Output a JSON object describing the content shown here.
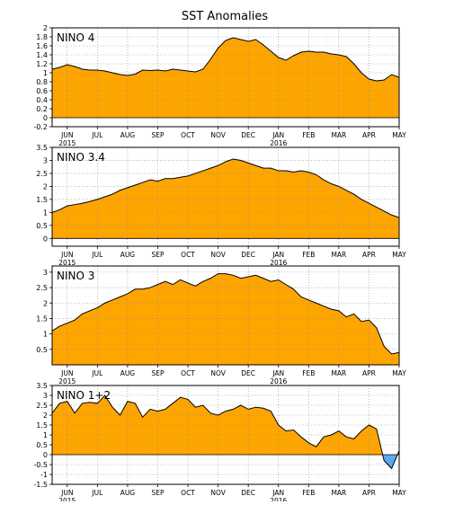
{
  "title": "SST Anomalies",
  "colors": {
    "positive": "#ffa500",
    "negative": "#5aaaf0",
    "line": "#000000",
    "grid": "#8c8c8c"
  },
  "x_axis": {
    "ticks": [
      {
        "label": "JUN",
        "t": 0.5
      },
      {
        "label": "JUL",
        "t": 1.5
      },
      {
        "label": "AUG",
        "t": 2.5
      },
      {
        "label": "SEP",
        "t": 3.5
      },
      {
        "label": "OCT",
        "t": 4.5
      },
      {
        "label": "NOV",
        "t": 5.5
      },
      {
        "label": "DEC",
        "t": 6.5
      },
      {
        "label": "JAN",
        "t": 7.5
      },
      {
        "label": "FEB",
        "t": 8.5
      },
      {
        "label": "MAR",
        "t": 9.5
      },
      {
        "label": "APR",
        "t": 10.5
      },
      {
        "label": "MAY",
        "t": 11.5
      }
    ],
    "year_labels": [
      {
        "label": "2015",
        "t": 0.5
      },
      {
        "label": "2016",
        "t": 7.5
      }
    ],
    "range": [
      0,
      11.5
    ]
  },
  "chart_data": [
    {
      "type": "area",
      "region_label": "NINO 4",
      "ylim": [
        -0.2,
        2.0
      ],
      "yticks": [
        "-0.2",
        "0",
        "0.2",
        "0.4",
        "0.6",
        "0.8",
        "1",
        "1.2",
        "1.4",
        "1.6",
        "1.8",
        "2"
      ],
      "x": [
        0.0,
        0.25,
        0.5,
        0.75,
        1.0,
        1.25,
        1.5,
        1.75,
        2.0,
        2.25,
        2.5,
        2.75,
        3.0,
        3.25,
        3.5,
        3.75,
        4.0,
        4.25,
        4.5,
        4.75,
        5.0,
        5.25,
        5.5,
        5.75,
        6.0,
        6.25,
        6.5,
        6.75,
        7.0,
        7.25,
        7.5,
        7.75,
        8.0,
        8.25,
        8.5,
        8.75,
        9.0,
        9.25,
        9.5,
        9.75,
        10.0,
        10.25,
        10.5,
        10.75,
        11.0,
        11.25,
        11.5
      ],
      "values": [
        1.08,
        1.12,
        1.18,
        1.14,
        1.08,
        1.06,
        1.06,
        1.04,
        1.0,
        0.96,
        0.94,
        0.97,
        1.06,
        1.05,
        1.06,
        1.04,
        1.08,
        1.06,
        1.04,
        1.02,
        1.08,
        1.3,
        1.55,
        1.72,
        1.78,
        1.74,
        1.7,
        1.74,
        1.62,
        1.48,
        1.34,
        1.28,
        1.38,
        1.46,
        1.48,
        1.46,
        1.46,
        1.42,
        1.4,
        1.36,
        1.2,
        1.0,
        0.86,
        0.82,
        0.84,
        0.96,
        0.9
      ]
    },
    {
      "type": "area",
      "region_label": "NINO 3.4",
      "ylim": [
        -0.3,
        3.5
      ],
      "yticks": [
        "0",
        "0.5",
        "1",
        "1.5",
        "2",
        "2.5",
        "3",
        "3.5"
      ],
      "x": [
        0.0,
        0.25,
        0.5,
        0.75,
        1.0,
        1.25,
        1.5,
        1.75,
        2.0,
        2.25,
        2.5,
        2.75,
        3.0,
        3.25,
        3.5,
        3.75,
        4.0,
        4.25,
        4.5,
        4.75,
        5.0,
        5.25,
        5.5,
        5.75,
        6.0,
        6.25,
        6.5,
        6.75,
        7.0,
        7.25,
        7.5,
        7.75,
        8.0,
        8.25,
        8.5,
        8.75,
        9.0,
        9.25,
        9.5,
        9.75,
        10.0,
        10.25,
        10.5,
        10.75,
        11.0,
        11.25,
        11.5
      ],
      "values": [
        1.0,
        1.1,
        1.25,
        1.3,
        1.35,
        1.42,
        1.5,
        1.6,
        1.7,
        1.85,
        1.95,
        2.05,
        2.15,
        2.25,
        2.2,
        2.3,
        2.3,
        2.35,
        2.4,
        2.5,
        2.6,
        2.7,
        2.8,
        2.95,
        3.05,
        3.0,
        2.9,
        2.8,
        2.7,
        2.7,
        2.6,
        2.6,
        2.55,
        2.6,
        2.55,
        2.45,
        2.25,
        2.1,
        2.0,
        1.85,
        1.7,
        1.5,
        1.35,
        1.2,
        1.05,
        0.9,
        0.8
      ]
    },
    {
      "type": "area",
      "region_label": "NINO 3",
      "ylim": [
        0.0,
        3.2
      ],
      "yticks": [
        "0.5",
        "1",
        "1.5",
        "2",
        "2.5",
        "3"
      ],
      "x": [
        0.0,
        0.25,
        0.5,
        0.75,
        1.0,
        1.25,
        1.5,
        1.75,
        2.0,
        2.25,
        2.5,
        2.75,
        3.0,
        3.25,
        3.5,
        3.75,
        4.0,
        4.25,
        4.5,
        4.75,
        5.0,
        5.25,
        5.5,
        5.75,
        6.0,
        6.25,
        6.5,
        6.75,
        7.0,
        7.25,
        7.5,
        7.75,
        8.0,
        8.25,
        8.5,
        8.75,
        9.0,
        9.25,
        9.5,
        9.75,
        10.0,
        10.25,
        10.5,
        10.75,
        11.0,
        11.25,
        11.5
      ],
      "values": [
        1.1,
        1.25,
        1.35,
        1.45,
        1.65,
        1.75,
        1.85,
        2.0,
        2.1,
        2.2,
        2.3,
        2.45,
        2.45,
        2.5,
        2.6,
        2.7,
        2.6,
        2.75,
        2.65,
        2.55,
        2.7,
        2.8,
        2.95,
        2.95,
        2.9,
        2.8,
        2.85,
        2.9,
        2.8,
        2.7,
        2.75,
        2.6,
        2.45,
        2.2,
        2.1,
        2.0,
        1.9,
        1.8,
        1.75,
        1.55,
        1.65,
        1.4,
        1.45,
        1.2,
        0.6,
        0.35,
        0.4
      ]
    },
    {
      "type": "area",
      "region_label": "NINO 1+2",
      "ylim": [
        -1.5,
        3.5
      ],
      "yticks": [
        "-1.5",
        "-1",
        "-0.5",
        "0",
        "0.5",
        "1",
        "1.5",
        "2",
        "2.5",
        "3",
        "3.5"
      ],
      "x": [
        0.0,
        0.25,
        0.5,
        0.75,
        1.0,
        1.25,
        1.5,
        1.75,
        2.0,
        2.25,
        2.5,
        2.75,
        3.0,
        3.25,
        3.5,
        3.75,
        4.0,
        4.25,
        4.5,
        4.75,
        5.0,
        5.25,
        5.5,
        5.75,
        6.0,
        6.25,
        6.5,
        6.75,
        7.0,
        7.25,
        7.5,
        7.75,
        8.0,
        8.25,
        8.5,
        8.75,
        9.0,
        9.25,
        9.5,
        9.75,
        10.0,
        10.25,
        10.5,
        10.75,
        11.0,
        11.25,
        11.5
      ],
      "values": [
        2.1,
        2.6,
        2.7,
        2.1,
        2.6,
        2.65,
        2.6,
        3.0,
        2.4,
        2.0,
        2.7,
        2.6,
        1.9,
        2.3,
        2.2,
        2.3,
        2.6,
        2.9,
        2.8,
        2.4,
        2.5,
        2.1,
        2.0,
        2.2,
        2.3,
        2.5,
        2.3,
        2.4,
        2.35,
        2.2,
        1.5,
        1.2,
        1.25,
        0.9,
        0.6,
        0.4,
        0.9,
        1.0,
        1.2,
        0.9,
        0.8,
        1.2,
        1.5,
        1.3,
        -0.3,
        -0.7,
        0.2
      ]
    }
  ]
}
